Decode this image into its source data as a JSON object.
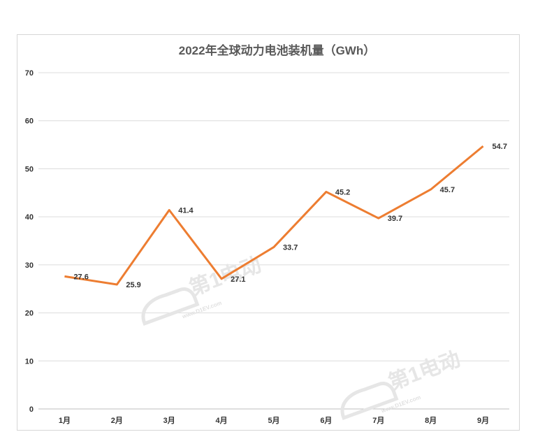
{
  "chart_data": {
    "type": "line",
    "title": "2022年全球动力电池装机量（GWh）",
    "categories": [
      "1月",
      "2月",
      "3月",
      "4月",
      "5月",
      "6月",
      "7月",
      "8月",
      "9月"
    ],
    "series": [
      {
        "values": [
          27.6,
          25.9,
          41.4,
          27.1,
          33.7,
          45.2,
          39.7,
          45.7,
          54.7
        ]
      }
    ],
    "y_ticks": [
      "0",
      "10",
      "20",
      "30",
      "40",
      "50",
      "60",
      "70"
    ],
    "ylim": [
      0,
      70
    ],
    "grid": true,
    "line_color": "#ed7d31"
  },
  "watermark": {
    "brand": "第1电动",
    "url": "www.D1EV.com"
  }
}
